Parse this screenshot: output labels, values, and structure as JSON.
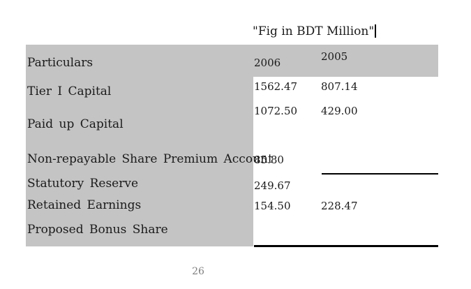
{
  "header": {
    "caption": "\"Fig in BDT Million\""
  },
  "table": {
    "columns": {
      "particulars": "Particulars",
      "y2006": "2006",
      "y2005": "2005"
    },
    "rows": [
      {
        "label": "Tier I Capital",
        "v2006": "1562.47",
        "v2005": "807.14"
      },
      {
        "label": "Paid up Capital",
        "v2006": "1072.50",
        "v2005": "429.00"
      },
      {
        "label": "Non-repayable Share Premium Account",
        "v2006": "85.80",
        "v2005": ""
      },
      {
        "label": "Statutory Reserve",
        "v2006": "249.67",
        "v2005": ""
      },
      {
        "label": "Retained Earnings",
        "v2006": "154.50",
        "v2005": "228.47"
      },
      {
        "label": "Proposed Bonus Share",
        "v2006": "",
        "v2005": ""
      }
    ]
  },
  "footer": {
    "page_number": "26"
  },
  "colors": {
    "table_shade": "#c4c4c4",
    "text": "#1a1a1a",
    "rule": "#000000",
    "page_number": "#7e7e7e"
  }
}
